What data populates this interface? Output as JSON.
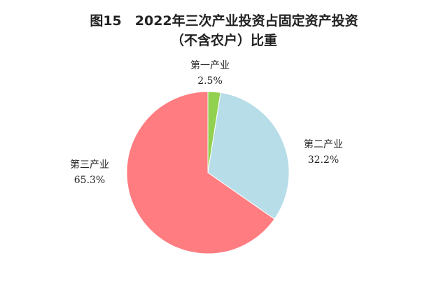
{
  "chart_data": {
    "type": "pie",
    "title": "图15　2022年三次产业投资占固定资产投资",
    "subtitle": "（不含农户）比重",
    "categories": [
      "第一产业",
      "第二产业",
      "第三产业"
    ],
    "values": [
      2.5,
      32.2,
      65.3
    ],
    "value_labels": [
      "2.5%",
      "32.2%",
      "65.3%"
    ],
    "colors": [
      "#92d050",
      "#b7dde8",
      "#ff7c80"
    ]
  }
}
